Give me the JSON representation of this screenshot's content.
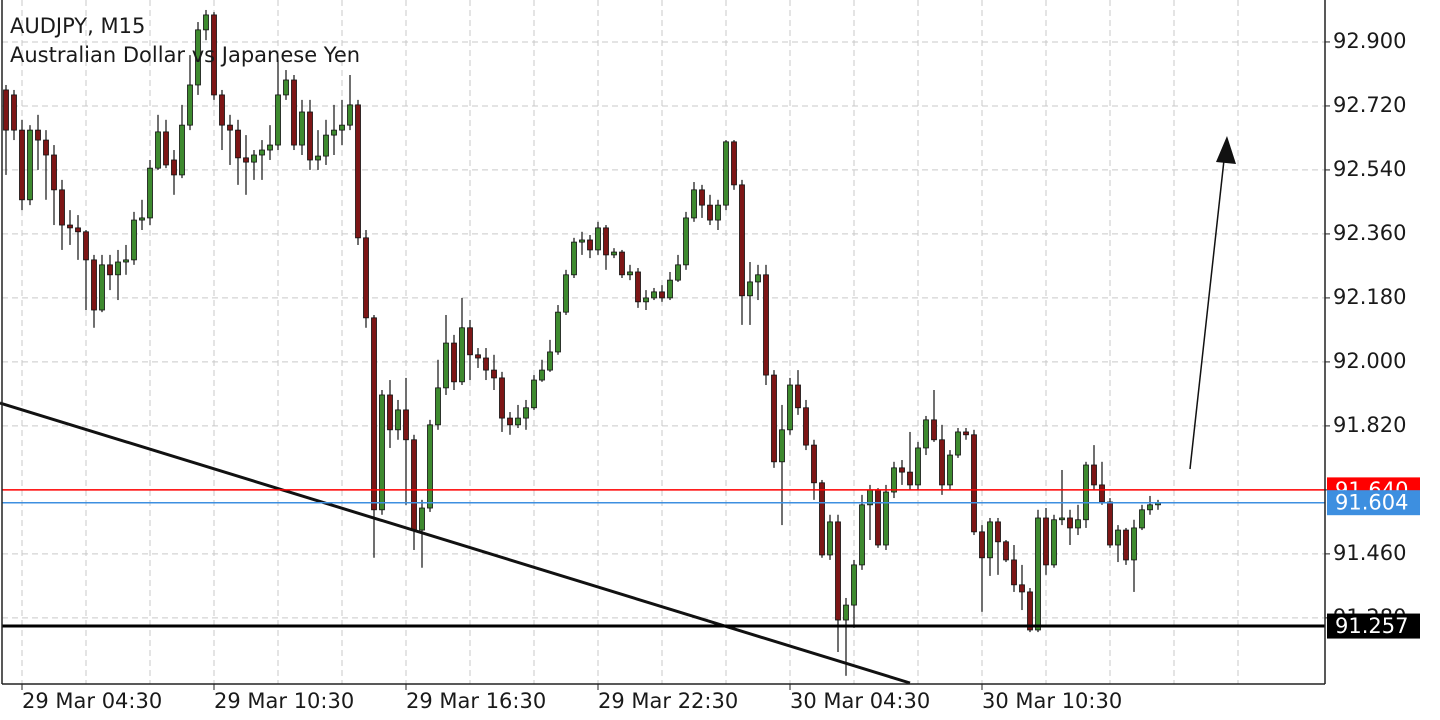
{
  "chart_data": {
    "type": "candlestick",
    "title": "AUDJPY, M15",
    "subtitle": "Australian Dollar vs Japanese Yen",
    "categories": [
      null,
      null,
      "29 Mar 04:30",
      null,
      null,
      null,
      null,
      null,
      null,
      null,
      null,
      null,
      null,
      null,
      null,
      null,
      null,
      null,
      null,
      null,
      null,
      null,
      null,
      null,
      null,
      null,
      "29 Mar 10:30",
      null,
      null,
      null,
      null,
      null,
      null,
      null,
      null,
      null,
      null,
      null,
      null,
      null,
      null,
      null,
      null,
      null,
      null,
      null,
      null,
      null,
      null,
      null,
      "29 Mar 16:30",
      null,
      null,
      null,
      null,
      null,
      null,
      null,
      null,
      null,
      null,
      null,
      null,
      null,
      null,
      null,
      null,
      null,
      null,
      null,
      null,
      null,
      null,
      null,
      "29 Mar 22:30",
      null,
      null,
      null,
      null,
      null,
      null,
      null,
      null,
      null,
      null,
      null,
      null,
      null,
      null,
      null,
      null,
      null,
      null,
      null,
      null,
      null,
      null,
      null,
      "30 Mar 04:30",
      null,
      null,
      null,
      null,
      null,
      null,
      null,
      null,
      null,
      null,
      null,
      null,
      null,
      null,
      null,
      null,
      null,
      null,
      null,
      null,
      null,
      null,
      null,
      "30 Mar 10:30",
      null,
      null,
      null,
      null,
      null,
      null,
      null,
      null,
      null,
      null,
      null,
      null,
      null,
      null,
      null,
      null,
      null,
      null,
      null,
      null,
      null,
      null
    ],
    "open": [
      92.765,
      92.751,
      92.652,
      92.456,
      92.652,
      92.624,
      92.582,
      92.484,
      92.385,
      92.377,
      92.366,
      92.287,
      92.146,
      92.273,
      92.245,
      92.281,
      92.287,
      92.399,
      92.405,
      92.545,
      92.647,
      92.568,
      92.526,
      92.666,
      92.779,
      92.934,
      92.976,
      92.751,
      92.666,
      92.652,
      92.574,
      92.562,
      92.582,
      92.596,
      92.61,
      92.751,
      92.793,
      92.61,
      92.703,
      92.568,
      92.579,
      92.638,
      92.652,
      92.666,
      92.723,
      92.349,
      92.124,
      91.584,
      91.907,
      91.809,
      91.865,
      91.781,
      91.527,
      91.589,
      91.823,
      91.927,
      92.053,
      91.944,
      92.096,
      92.02,
      92.011,
      91.977,
      91.955,
      91.842,
      91.823,
      91.842,
      91.871,
      91.949,
      91.977,
      92.028,
      92.14,
      92.245,
      92.337,
      92.343,
      92.315,
      92.377,
      92.301,
      92.309,
      92.245,
      92.253,
      92.169,
      92.18,
      92.197,
      92.18,
      92.23,
      92.273,
      92.405,
      92.484,
      92.441,
      92.399,
      92.441,
      92.619,
      92.498,
      92.186,
      92.225,
      92.245,
      91.963,
      91.719,
      91.809,
      91.935,
      91.871,
      91.766,
      91.66,
      91.457,
      91.55,
      91.274,
      91.316,
      91.429,
      91.598,
      91.64,
      91.485,
      91.634,
      91.702,
      91.69,
      91.654,
      91.758,
      91.837,
      91.781,
      91.654,
      91.738,
      91.803,
      91.795,
      91.522,
      91.449,
      91.55,
      91.494,
      91.443,
      91.373,
      91.353,
      91.246,
      91.561,
      91.429,
      91.556,
      91.561,
      91.533,
      91.556,
      91.71,
      91.654,
      91.606,
      91.485,
      91.527,
      91.443,
      91.533,
      91.584,
      91.598
    ],
    "high": [
      92.779,
      92.765,
      92.681,
      92.666,
      92.695,
      92.652,
      92.61,
      92.512,
      92.427,
      92.413,
      92.371,
      92.301,
      92.301,
      92.301,
      92.315,
      92.329,
      92.422,
      92.456,
      92.568,
      92.695,
      92.681,
      92.596,
      92.723,
      92.863,
      92.956,
      92.99,
      92.984,
      92.765,
      92.695,
      92.681,
      92.638,
      92.596,
      92.624,
      92.666,
      92.849,
      92.821,
      92.807,
      92.737,
      92.737,
      92.652,
      92.681,
      92.723,
      92.737,
      92.807,
      92.737,
      92.371,
      92.132,
      91.921,
      91.949,
      91.893,
      91.955,
      91.795,
      91.612,
      91.837,
      92.006,
      92.132,
      92.076,
      92.18,
      92.118,
      92.039,
      92.039,
      92.02,
      91.972,
      91.859,
      91.879,
      91.893,
      91.963,
      92.006,
      92.062,
      92.16,
      92.259,
      92.349,
      92.366,
      92.357,
      92.394,
      92.385,
      92.32,
      92.315,
      92.273,
      92.264,
      92.202,
      92.208,
      92.216,
      92.253,
      92.301,
      92.422,
      92.506,
      92.498,
      92.47,
      92.456,
      92.624,
      92.624,
      92.512,
      92.281,
      92.273,
      92.273,
      91.977,
      91.879,
      91.955,
      91.977,
      91.893,
      91.781,
      91.668,
      91.57,
      91.57,
      91.336,
      91.443,
      91.626,
      91.654,
      91.645,
      91.654,
      91.719,
      91.724,
      91.803,
      91.775,
      91.848,
      91.921,
      91.823,
      91.752,
      91.814,
      91.814,
      91.809,
      91.541,
      91.561,
      91.561,
      91.499,
      91.485,
      91.429,
      91.364,
      91.584,
      91.589,
      91.57,
      91.696,
      91.584,
      91.598,
      91.719,
      91.766,
      91.719,
      91.617,
      91.541,
      91.533,
      91.556,
      91.598,
      91.623,
      91.612
    ],
    "low": [
      92.526,
      92.624,
      92.427,
      92.441,
      92.54,
      92.456,
      92.385,
      92.315,
      92.329,
      92.287,
      92.146,
      92.096,
      92.14,
      92.202,
      92.174,
      92.245,
      92.273,
      92.371,
      92.385,
      92.54,
      92.545,
      92.47,
      92.517,
      92.652,
      92.751,
      92.905,
      92.737,
      92.596,
      92.554,
      92.498,
      92.47,
      92.512,
      92.512,
      92.568,
      92.596,
      92.737,
      92.596,
      92.582,
      92.54,
      92.54,
      92.554,
      92.582,
      92.61,
      92.652,
      92.329,
      92.096,
      91.449,
      91.57,
      91.758,
      91.781,
      91.598,
      91.471,
      91.421,
      91.578,
      91.809,
      91.907,
      91.921,
      91.935,
      91.949,
      91.983,
      91.949,
      91.921,
      91.803,
      91.795,
      91.814,
      91.809,
      91.865,
      91.944,
      91.972,
      92.02,
      92.132,
      92.236,
      92.301,
      92.292,
      92.301,
      92.259,
      92.292,
      92.236,
      92.23,
      92.152,
      92.146,
      92.174,
      92.169,
      92.174,
      92.225,
      92.259,
      92.394,
      92.405,
      92.385,
      92.371,
      92.427,
      92.484,
      92.104,
      92.104,
      92.174,
      91.935,
      91.702,
      91.541,
      91.795,
      91.851,
      91.752,
      91.612,
      91.449,
      91.443,
      91.184,
      91.117,
      91.252,
      91.415,
      91.499,
      91.477,
      91.471,
      91.617,
      91.654,
      91.64,
      91.64,
      91.738,
      91.775,
      91.626,
      91.64,
      91.73,
      91.781,
      91.513,
      91.297,
      91.398,
      91.401,
      91.437,
      91.353,
      91.302,
      91.24,
      91.24,
      91.401,
      91.421,
      91.541,
      91.485,
      91.513,
      91.533,
      91.64,
      91.598,
      91.477,
      91.437,
      91.429,
      91.353,
      91.527,
      91.57,
      91.584
    ],
    "close": [
      92.652,
      92.652,
      92.456,
      92.652,
      92.624,
      92.582,
      92.484,
      92.385,
      92.377,
      92.366,
      92.287,
      92.146,
      92.273,
      92.245,
      92.281,
      92.287,
      92.399,
      92.405,
      92.545,
      92.647,
      92.554,
      92.526,
      92.666,
      92.779,
      92.934,
      92.976,
      92.751,
      92.666,
      92.652,
      92.574,
      92.562,
      92.582,
      92.596,
      92.61,
      92.751,
      92.793,
      92.61,
      92.703,
      92.568,
      92.579,
      92.638,
      92.652,
      92.666,
      92.723,
      92.349,
      92.124,
      91.584,
      91.907,
      91.809,
      91.865,
      91.781,
      91.527,
      91.589,
      91.823,
      91.927,
      92.053,
      91.944,
      92.096,
      92.02,
      92.011,
      91.977,
      91.955,
      91.842,
      91.823,
      91.842,
      91.871,
      91.949,
      91.977,
      92.028,
      92.14,
      92.245,
      92.337,
      92.343,
      92.315,
      92.377,
      92.301,
      92.309,
      92.245,
      92.253,
      92.169,
      92.18,
      92.197,
      92.18,
      92.23,
      92.273,
      92.405,
      92.484,
      92.441,
      92.399,
      92.441,
      92.619,
      92.498,
      92.186,
      92.225,
      92.245,
      91.963,
      91.719,
      91.809,
      91.935,
      91.871,
      91.766,
      91.66,
      91.457,
      91.55,
      91.274,
      91.316,
      91.429,
      91.598,
      91.64,
      91.485,
      91.634,
      91.702,
      91.69,
      91.654,
      91.758,
      91.837,
      91.781,
      91.654,
      91.738,
      91.803,
      91.795,
      91.522,
      91.449,
      91.55,
      91.494,
      91.443,
      91.373,
      91.353,
      91.246,
      91.561,
      91.429,
      91.556,
      91.561,
      91.533,
      91.556,
      91.71,
      91.654,
      91.606,
      91.485,
      91.527,
      91.443,
      91.533,
      91.584,
      91.598,
      91.604
    ],
    "up_color": "#3e8a2f",
    "down_color": "#7d1616",
    "ylim": [
      91.094,
      93.018
    ],
    "yticks": [
      {
        "value": 92.9,
        "label": "92.900"
      },
      {
        "value": 92.72,
        "label": "92.720"
      },
      {
        "value": 92.54,
        "label": "92.540"
      },
      {
        "value": 92.36,
        "label": "92.360"
      },
      {
        "value": 92.18,
        "label": "92.180"
      },
      {
        "value": 92,
        "label": "92.000"
      },
      {
        "value": 91.82,
        "label": "91.820"
      },
      {
        "value": 91.64,
        "label": "91.640"
      },
      {
        "value": 91.46,
        "label": "91.460"
      },
      {
        "value": 91.28,
        "label": "91.280"
      }
    ],
    "grid": true,
    "price_lines": [
      {
        "value": 91.64,
        "label": "91.640",
        "color": "#ff0000"
      },
      {
        "value": 91.604,
        "color": "#3d8fe0"
      },
      {
        "value": 91.257,
        "color": "#000000"
      }
    ]
  }
}
